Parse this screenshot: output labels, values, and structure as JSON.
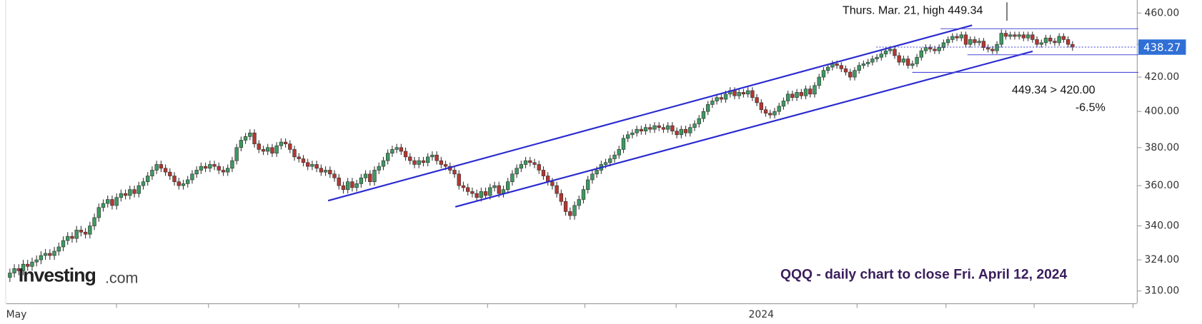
{
  "chart_data": {
    "type": "candlestick",
    "title": "QQQ - daily chart to close Fri. April 12, 2024",
    "annotations": [
      "Thurs. Mar. 21, high 449.34",
      "449.34 > 420.00",
      "-6.5%"
    ],
    "logo": {
      "name": "Investing",
      "suffix": ".com"
    },
    "up_color": "#3c9a5f",
    "down_color": "#b8352f",
    "ylog": true,
    "ylim": [
      304.6,
      468.6
    ],
    "yticks": [
      {
        "value": 460,
        "label": "460.00"
      },
      {
        "value": 440,
        "label": "440.00"
      },
      {
        "value": 420,
        "label": "420.00"
      },
      {
        "value": 400,
        "label": "400.00"
      },
      {
        "value": 380,
        "label": "380.00"
      },
      {
        "value": 360,
        "label": "360.00"
      },
      {
        "value": 340,
        "label": "340.00"
      },
      {
        "value": 324,
        "label": "324.00"
      },
      {
        "value": 310,
        "label": "310.00"
      }
    ],
    "categories": [
      "May",
      null,
      null,
      null,
      null,
      null,
      null,
      null,
      null,
      null,
      null,
      null,
      null,
      null,
      null,
      null,
      null,
      null,
      null,
      null,
      null,
      null,
      null,
      null,
      null,
      null,
      null,
      null,
      null,
      null,
      null,
      null,
      null,
      null,
      null,
      null,
      null,
      null,
      null,
      null,
      null,
      null,
      null,
      null,
      null,
      null,
      null,
      null,
      null,
      null,
      null,
      null,
      null,
      null,
      null,
      null,
      null,
      null,
      null,
      null,
      null,
      null,
      null,
      null,
      null,
      null,
      null,
      null,
      null,
      null,
      null,
      null,
      null,
      null,
      null,
      null,
      null,
      null,
      null,
      null,
      null,
      null,
      null,
      null,
      null,
      null,
      null,
      null,
      null,
      null,
      null,
      null,
      null,
      null,
      null,
      null,
      null,
      null,
      null,
      null,
      null,
      null,
      null,
      null,
      null,
      null,
      null,
      null,
      null,
      null,
      null,
      null,
      null,
      null,
      null,
      null,
      null,
      null,
      null,
      null,
      null,
      null,
      null,
      null,
      null,
      null,
      null,
      null,
      null,
      null,
      null,
      null,
      null,
      null,
      null,
      null,
      null,
      null,
      null,
      null,
      null,
      null,
      null,
      null,
      null,
      null,
      null,
      null,
      null,
      null,
      null,
      null,
      null,
      null,
      null,
      null,
      null,
      null,
      null,
      null,
      null,
      null,
      null,
      null,
      null,
      null,
      null,
      null,
      null,
      "2024",
      null,
      null,
      null,
      null,
      null,
      null,
      null,
      null,
      null,
      null,
      null,
      null,
      null,
      null,
      null,
      null,
      null,
      null,
      null,
      null,
      null,
      null,
      null,
      null,
      null,
      null,
      null,
      null,
      null,
      null,
      null,
      null,
      null,
      null,
      null,
      null,
      null,
      null,
      null,
      null,
      null,
      null,
      null,
      null,
      null,
      null,
      null,
      null,
      null,
      null,
      null,
      null,
      null,
      null,
      null,
      null,
      null,
      null,
      null,
      null,
      null,
      null,
      null,
      null,
      null,
      null,
      null,
      null,
      null,
      null
    ],
    "open": [
      316,
      318,
      320,
      319,
      322,
      321,
      323,
      324,
      326,
      327,
      326,
      328,
      330,
      333,
      335,
      334,
      338,
      337,
      336,
      340,
      344,
      349,
      351,
      353,
      350,
      354,
      356,
      355,
      358,
      356,
      360,
      362,
      365,
      368,
      371,
      369,
      367,
      365,
      362,
      360,
      361,
      363,
      366,
      368,
      370,
      369,
      371,
      370,
      368,
      367,
      369,
      373,
      380,
      384,
      386,
      388,
      382,
      379,
      378,
      380,
      377,
      381,
      383,
      382,
      379,
      375,
      374,
      372,
      370,
      371,
      369,
      367,
      368,
      366,
      364,
      360,
      358,
      362,
      359,
      361,
      364,
      366,
      362,
      368,
      370,
      373,
      377,
      379,
      380,
      378,
      375,
      373,
      371,
      373,
      372,
      375,
      376,
      373,
      371,
      370,
      368,
      366,
      360,
      359,
      357,
      356,
      354,
      357,
      355,
      359,
      360,
      356,
      358,
      362,
      366,
      369,
      371,
      373,
      372,
      371,
      368,
      365,
      362,
      360,
      356,
      352,
      347,
      345,
      350,
      353,
      358,
      363,
      366,
      368,
      371,
      372,
      374,
      376,
      379,
      385,
      387,
      388,
      390,
      389,
      391,
      390,
      392,
      391,
      390,
      392,
      389,
      387,
      390,
      388,
      391,
      393,
      396,
      400,
      404,
      406,
      408,
      407,
      410,
      412,
      409,
      411,
      410,
      412,
      408,
      405,
      401,
      399,
      398,
      400,
      403,
      406,
      410,
      408,
      411,
      409,
      413,
      410,
      415,
      420,
      424,
      426,
      428,
      427,
      425,
      423,
      420,
      424,
      427,
      428,
      429,
      431,
      432,
      434,
      436,
      437,
      433,
      429,
      431,
      427,
      428,
      432,
      436,
      438,
      437,
      436,
      438,
      441,
      443,
      445,
      444,
      446,
      440,
      443,
      441,
      442,
      438,
      437,
      436,
      440,
      447,
      445,
      446,
      445,
      446,
      444,
      446,
      443,
      440,
      441,
      444,
      442,
      441,
      445,
      443,
      440
    ],
    "high": [
      320,
      322,
      322,
      324,
      324,
      325,
      326,
      328,
      329,
      329,
      330,
      332,
      335,
      337,
      337,
      340,
      340,
      339,
      342,
      346,
      351,
      353,
      355,
      355,
      356,
      358,
      358,
      360,
      360,
      362,
      364,
      367,
      370,
      373,
      373,
      371,
      369,
      367,
      364,
      363,
      365,
      368,
      370,
      372,
      372,
      373,
      373,
      372,
      370,
      371,
      375,
      382,
      386,
      388,
      390,
      390,
      384,
      381,
      382,
      382,
      383,
      385,
      385,
      384,
      381,
      377,
      376,
      374,
      373,
      373,
      371,
      370,
      370,
      368,
      366,
      362,
      364,
      364,
      363,
      366,
      368,
      368,
      370,
      372,
      375,
      379,
      381,
      382,
      382,
      380,
      377,
      375,
      375,
      375,
      377,
      378,
      378,
      375,
      373,
      372,
      370,
      368,
      362,
      361,
      359,
      358,
      359,
      359,
      361,
      362,
      362,
      360,
      364,
      368,
      371,
      373,
      375,
      375,
      374,
      373,
      370,
      367,
      364,
      362,
      358,
      354,
      349,
      352,
      355,
      360,
      365,
      368,
      370,
      373,
      374,
      376,
      378,
      381,
      387,
      389,
      390,
      392,
      392,
      393,
      393,
      394,
      394,
      393,
      394,
      394,
      391,
      392,
      392,
      393,
      395,
      398,
      402,
      406,
      408,
      410,
      410,
      412,
      414,
      414,
      413,
      413,
      414,
      414,
      410,
      407,
      403,
      401,
      402,
      405,
      408,
      412,
      412,
      413,
      413,
      415,
      415,
      417,
      422,
      426,
      428,
      430,
      430,
      429,
      427,
      425,
      426,
      429,
      430,
      431,
      433,
      434,
      436,
      438,
      439,
      439,
      435,
      433,
      433,
      430,
      434,
      438,
      440,
      440,
      439,
      440,
      443,
      445,
      447,
      447,
      448,
      448,
      445,
      445,
      444,
      444,
      440,
      439,
      442,
      449.34,
      449,
      448,
      448,
      448,
      448,
      448,
      448,
      445,
      443,
      446,
      446,
      444,
      447,
      447,
      445,
      442
    ],
    "low": [
      314,
      316,
      317,
      317,
      319,
      319,
      321,
      322,
      324,
      324,
      324,
      326,
      328,
      331,
      332,
      332,
      335,
      334,
      334,
      338,
      342,
      347,
      349,
      348,
      348,
      352,
      353,
      353,
      354,
      354,
      358,
      360,
      363,
      366,
      367,
      365,
      363,
      360,
      358,
      358,
      359,
      361,
      364,
      366,
      367,
      367,
      368,
      366,
      365,
      365,
      367,
      371,
      378,
      382,
      384,
      380,
      377,
      376,
      376,
      375,
      375,
      379,
      380,
      377,
      373,
      372,
      370,
      368,
      368,
      367,
      365,
      365,
      364,
      362,
      358,
      356,
      356,
      357,
      357,
      359,
      362,
      360,
      360,
      366,
      368,
      371,
      375,
      377,
      376,
      373,
      371,
      369,
      369,
      370,
      370,
      373,
      371,
      369,
      368,
      366,
      364,
      358,
      357,
      355,
      354,
      352,
      352,
      353,
      353,
      357,
      354,
      354,
      356,
      360,
      364,
      367,
      369,
      370,
      369,
      366,
      363,
      360,
      358,
      354,
      350,
      345,
      343,
      343,
      348,
      351,
      356,
      361,
      364,
      366,
      369,
      370,
      372,
      374,
      377,
      383,
      385,
      386,
      387,
      387,
      388,
      388,
      389,
      388,
      388,
      387,
      385,
      385,
      386,
      386,
      389,
      391,
      394,
      398,
      402,
      404,
      405,
      405,
      408,
      407,
      407,
      408,
      408,
      406,
      403,
      399,
      397,
      396,
      396,
      398,
      401,
      404,
      406,
      406,
      407,
      407,
      408,
      408,
      413,
      418,
      422,
      424,
      425,
      423,
      421,
      418,
      418,
      422,
      425,
      426,
      427,
      429,
      430,
      432,
      434,
      431,
      427,
      427,
      425,
      425,
      426,
      430,
      434,
      435,
      434,
      434,
      436,
      439,
      441,
      442,
      442,
      438,
      438,
      439,
      439,
      436,
      435,
      434,
      434,
      438,
      443,
      443,
      443,
      443,
      442,
      442,
      441,
      438,
      438,
      439,
      440,
      439,
      439,
      441,
      438,
      436
    ],
    "close": [
      318,
      320,
      319,
      322,
      321,
      323,
      324,
      326,
      327,
      326,
      328,
      330,
      333,
      335,
      334,
      338,
      337,
      336,
      340,
      344,
      349,
      351,
      353,
      350,
      354,
      356,
      355,
      358,
      356,
      360,
      362,
      365,
      368,
      371,
      369,
      367,
      365,
      362,
      360,
      361,
      363,
      366,
      368,
      370,
      369,
      371,
      370,
      368,
      367,
      369,
      373,
      380,
      384,
      386,
      388,
      382,
      379,
      378,
      380,
      377,
      381,
      383,
      382,
      379,
      375,
      374,
      372,
      370,
      371,
      369,
      367,
      368,
      366,
      364,
      360,
      358,
      362,
      359,
      361,
      364,
      366,
      362,
      368,
      370,
      373,
      377,
      379,
      380,
      378,
      375,
      373,
      371,
      373,
      372,
      375,
      376,
      373,
      371,
      370,
      368,
      366,
      360,
      359,
      357,
      356,
      354,
      357,
      355,
      359,
      360,
      356,
      358,
      362,
      366,
      369,
      371,
      373,
      372,
      371,
      368,
      365,
      362,
      360,
      356,
      352,
      347,
      345,
      350,
      353,
      358,
      363,
      366,
      368,
      371,
      372,
      374,
      376,
      379,
      385,
      387,
      388,
      390,
      389,
      391,
      390,
      392,
      391,
      390,
      392,
      389,
      387,
      390,
      388,
      391,
      393,
      396,
      400,
      404,
      406,
      408,
      407,
      410,
      412,
      409,
      411,
      410,
      412,
      408,
      405,
      401,
      399,
      398,
      400,
      403,
      406,
      410,
      408,
      411,
      409,
      413,
      410,
      415,
      420,
      424,
      426,
      428,
      427,
      425,
      423,
      420,
      424,
      427,
      428,
      429,
      431,
      432,
      434,
      436,
      437,
      433,
      429,
      431,
      427,
      428,
      432,
      436,
      438,
      437,
      436,
      438,
      441,
      443,
      445,
      444,
      446,
      440,
      443,
      441,
      442,
      438,
      437,
      436,
      440,
      447,
      445,
      446,
      445,
      446,
      444,
      446,
      443,
      440,
      441,
      444,
      442,
      441,
      445,
      443,
      440,
      438.27
    ]
  }
}
